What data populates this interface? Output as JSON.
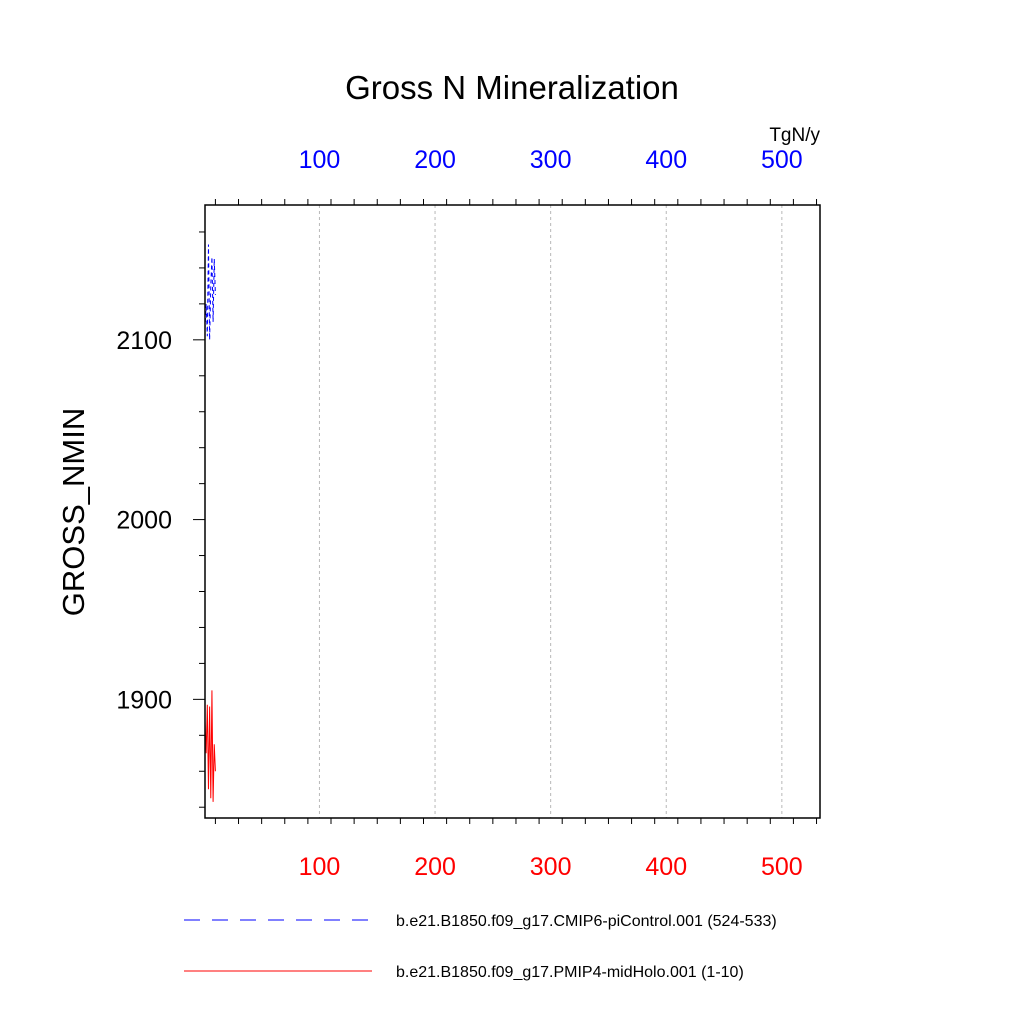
{
  "chart_data": {
    "type": "line",
    "title": "Gross N Mineralization",
    "ylabel": "GROSS_NMIN",
    "units": "TgN/y",
    "x_top": {
      "ticks": [
        100,
        200,
        300,
        400,
        500
      ],
      "range": [
        1,
        533
      ],
      "color": "#0000ff"
    },
    "x_bottom": {
      "ticks": [
        100,
        200,
        300,
        400,
        500
      ],
      "range": [
        1,
        533
      ],
      "color": "#ff0000"
    },
    "y": {
      "ticks": [
        1900,
        2000,
        2100
      ],
      "range": [
        1834,
        2175
      ]
    },
    "grid": true,
    "series": [
      {
        "name": "b.e21.B1850.f09_g17.CMIP6-piControl.001 (524-533)",
        "color": "#0000ff",
        "dash": "dashed",
        "x": [
          1,
          2,
          3,
          4,
          5,
          6,
          7,
          8,
          9,
          10
        ],
        "y": [
          2106,
          2120,
          2102,
          2153,
          2100,
          2130,
          2146,
          2110,
          2145,
          2125
        ]
      },
      {
        "name": "b.e21.B1850.f09_g17.PMIP4-midHolo.001 (1-10)",
        "color": "#ff0000",
        "dash": "solid",
        "x": [
          1,
          2,
          3,
          4,
          5,
          6,
          7,
          8,
          9,
          10
        ],
        "y": [
          1888,
          1870,
          1897,
          1850,
          1896,
          1845,
          1905,
          1843,
          1875,
          1860
        ]
      }
    ]
  }
}
